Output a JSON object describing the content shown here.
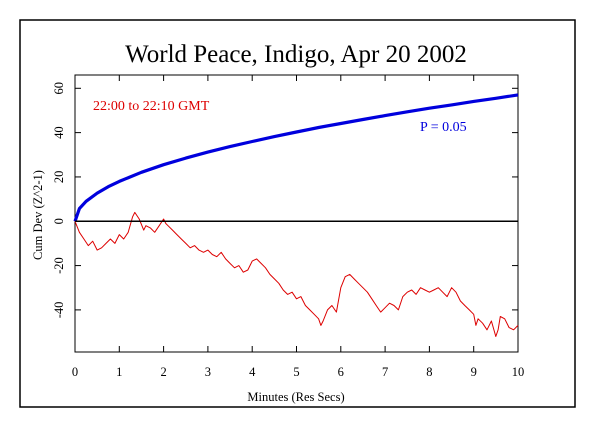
{
  "chart_data": {
    "type": "line",
    "title": "World Peace, Indigo, Apr 20 2002",
    "xlabel": "Minutes (Res Secs)",
    "ylabel": "Cum Dev (Z^2-1)",
    "xlim": [
      0,
      10
    ],
    "ylim": [
      -59,
      66
    ],
    "x_ticks": [
      0,
      1,
      2,
      3,
      4,
      5,
      6,
      7,
      8,
      9,
      10
    ],
    "y_ticks": [
      -40,
      -20,
      0,
      20,
      40,
      60
    ],
    "zero_line": true,
    "annotations": {
      "time_range": "22:00 to 22:10 GMT",
      "p_value": "P = 0.05"
    },
    "colors": {
      "frame": "#000000",
      "envelope": "#0000dd",
      "cumdev": "#dd0000",
      "time_range_text": "#dd0000",
      "p_value_text": "#0000dd",
      "title_text": "#000000"
    },
    "series": [
      {
        "role": "p05-envelope",
        "equation": "y = 1.645 * sqrt(2 * t * 60)",
        "x": [
          0,
          0.1,
          0.25,
          0.5,
          0.75,
          1,
          1.5,
          2,
          2.5,
          3,
          3.5,
          4,
          4.5,
          5,
          5.5,
          6,
          6.5,
          7,
          7.5,
          8,
          8.5,
          9,
          9.5,
          10
        ],
        "y": [
          0,
          5.7,
          9.0,
          12.7,
          15.6,
          18.0,
          22.1,
          25.5,
          28.5,
          31.2,
          33.7,
          36.0,
          38.2,
          40.3,
          42.3,
          44.1,
          45.9,
          47.7,
          49.4,
          51.0,
          52.5,
          54.1,
          55.5,
          57.0
        ]
      },
      {
        "role": "cumulative-deviation",
        "x": [
          0,
          0.1,
          0.2,
          0.3,
          0.4,
          0.5,
          0.6,
          0.7,
          0.8,
          0.9,
          1.0,
          1.1,
          1.2,
          1.3,
          1.35,
          1.45,
          1.55,
          1.6,
          1.7,
          1.8,
          1.9,
          2.0,
          2.05,
          2.1,
          2.2,
          2.3,
          2.4,
          2.5,
          2.6,
          2.7,
          2.8,
          2.9,
          3.0,
          3.1,
          3.2,
          3.3,
          3.4,
          3.5,
          3.6,
          3.7,
          3.8,
          3.9,
          4.0,
          4.1,
          4.2,
          4.3,
          4.4,
          4.5,
          4.6,
          4.7,
          4.8,
          4.9,
          5.0,
          5.1,
          5.2,
          5.3,
          5.4,
          5.5,
          5.55,
          5.6,
          5.7,
          5.8,
          5.9,
          6.0,
          6.1,
          6.2,
          6.3,
          6.4,
          6.5,
          6.6,
          6.7,
          6.8,
          6.9,
          7.0,
          7.1,
          7.2,
          7.3,
          7.4,
          7.5,
          7.6,
          7.7,
          7.8,
          7.9,
          8.0,
          8.1,
          8.2,
          8.3,
          8.4,
          8.5,
          8.6,
          8.7,
          8.8,
          8.9,
          9.0,
          9.05,
          9.1,
          9.2,
          9.3,
          9.4,
          9.5,
          9.55,
          9.6,
          9.7,
          9.8,
          9.9,
          10.0
        ],
        "y": [
          0,
          -5,
          -8,
          -11,
          -9,
          -13,
          -12,
          -10,
          -8,
          -10,
          -6,
          -8,
          -5,
          2,
          4,
          1,
          -4,
          -2,
          -3,
          -5,
          -2,
          1,
          -1,
          -2,
          -4,
          -6,
          -8,
          -10,
          -12,
          -11,
          -13,
          -14,
          -13,
          -15,
          -16,
          -14,
          -17,
          -19,
          -21,
          -20,
          -23,
          -22,
          -18,
          -17,
          -19,
          -21,
          -24,
          -26,
          -28,
          -31,
          -33,
          -32,
          -35,
          -34,
          -38,
          -40,
          -42,
          -44,
          -47,
          -45,
          -40,
          -38,
          -41,
          -30,
          -25,
          -24,
          -26,
          -28,
          -30,
          -32,
          -35,
          -38,
          -41,
          -39,
          -37,
          -38,
          -40,
          -34,
          -32,
          -31,
          -33,
          -30,
          -31,
          -32,
          -31,
          -30,
          -32,
          -34,
          -30,
          -32,
          -36,
          -38,
          -40,
          -42,
          -47,
          -44,
          -46,
          -49,
          -45,
          -52,
          -49,
          -43,
          -44,
          -48,
          -49,
          -47
        ]
      }
    ]
  }
}
